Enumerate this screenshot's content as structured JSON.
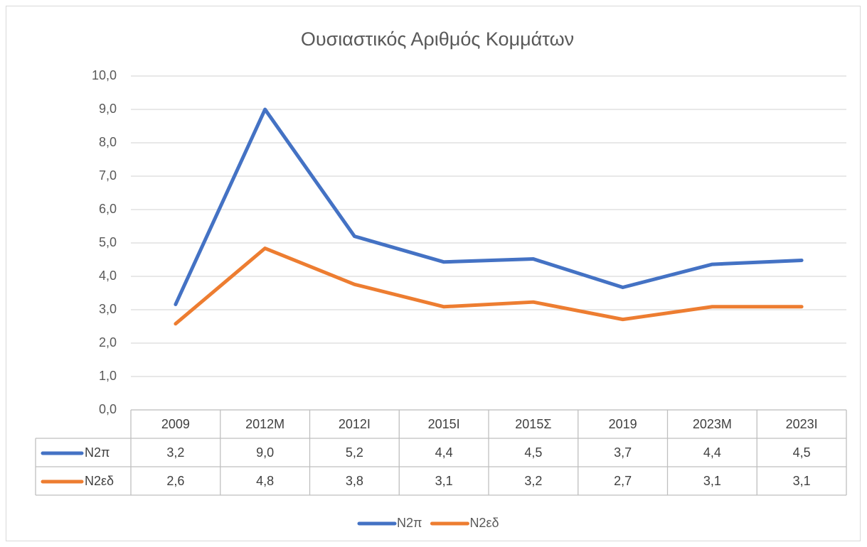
{
  "chart_data": {
    "type": "line",
    "title": "Ουσιαστικός Αριθμός Κομμάτων",
    "categories": [
      "2009",
      "2012Μ",
      "2012Ι",
      "2015Ι",
      "2015Σ",
      "2019",
      "2023Μ",
      "2023Ι"
    ],
    "series": [
      {
        "name": "N2π",
        "color": "#4472c4",
        "values": [
          3.16,
          9.0,
          5.2,
          4.43,
          4.52,
          3.67,
          4.36,
          4.48
        ],
        "value_labels": [
          "3,2",
          "9,0",
          "5,2",
          "4,4",
          "4,5",
          "3,7",
          "4,4",
          "4,5"
        ]
      },
      {
        "name": "N2εδ",
        "color": "#ed7d31",
        "values": [
          2.58,
          4.84,
          3.76,
          3.09,
          3.23,
          2.71,
          3.09,
          3.09
        ],
        "value_labels": [
          "2,6",
          "4,8",
          "3,8",
          "3,1",
          "3,2",
          "2,7",
          "3,1",
          "3,1"
        ]
      }
    ],
    "ylim": [
      0,
      10
    ],
    "yticks": [
      {
        "value": 0,
        "label": "0,0"
      },
      {
        "value": 1,
        "label": "1,0"
      },
      {
        "value": 2,
        "label": "2,0"
      },
      {
        "value": 3,
        "label": "3,0"
      },
      {
        "value": 4,
        "label": "4,0"
      },
      {
        "value": 5,
        "label": "5,0"
      },
      {
        "value": 6,
        "label": "6,0"
      },
      {
        "value": 7,
        "label": "7,0"
      },
      {
        "value": 8,
        "label": "8,0"
      },
      {
        "value": 9,
        "label": "9,0"
      },
      {
        "value": 10,
        "label": "10,0"
      }
    ],
    "grid": true,
    "legend": "bottom"
  }
}
